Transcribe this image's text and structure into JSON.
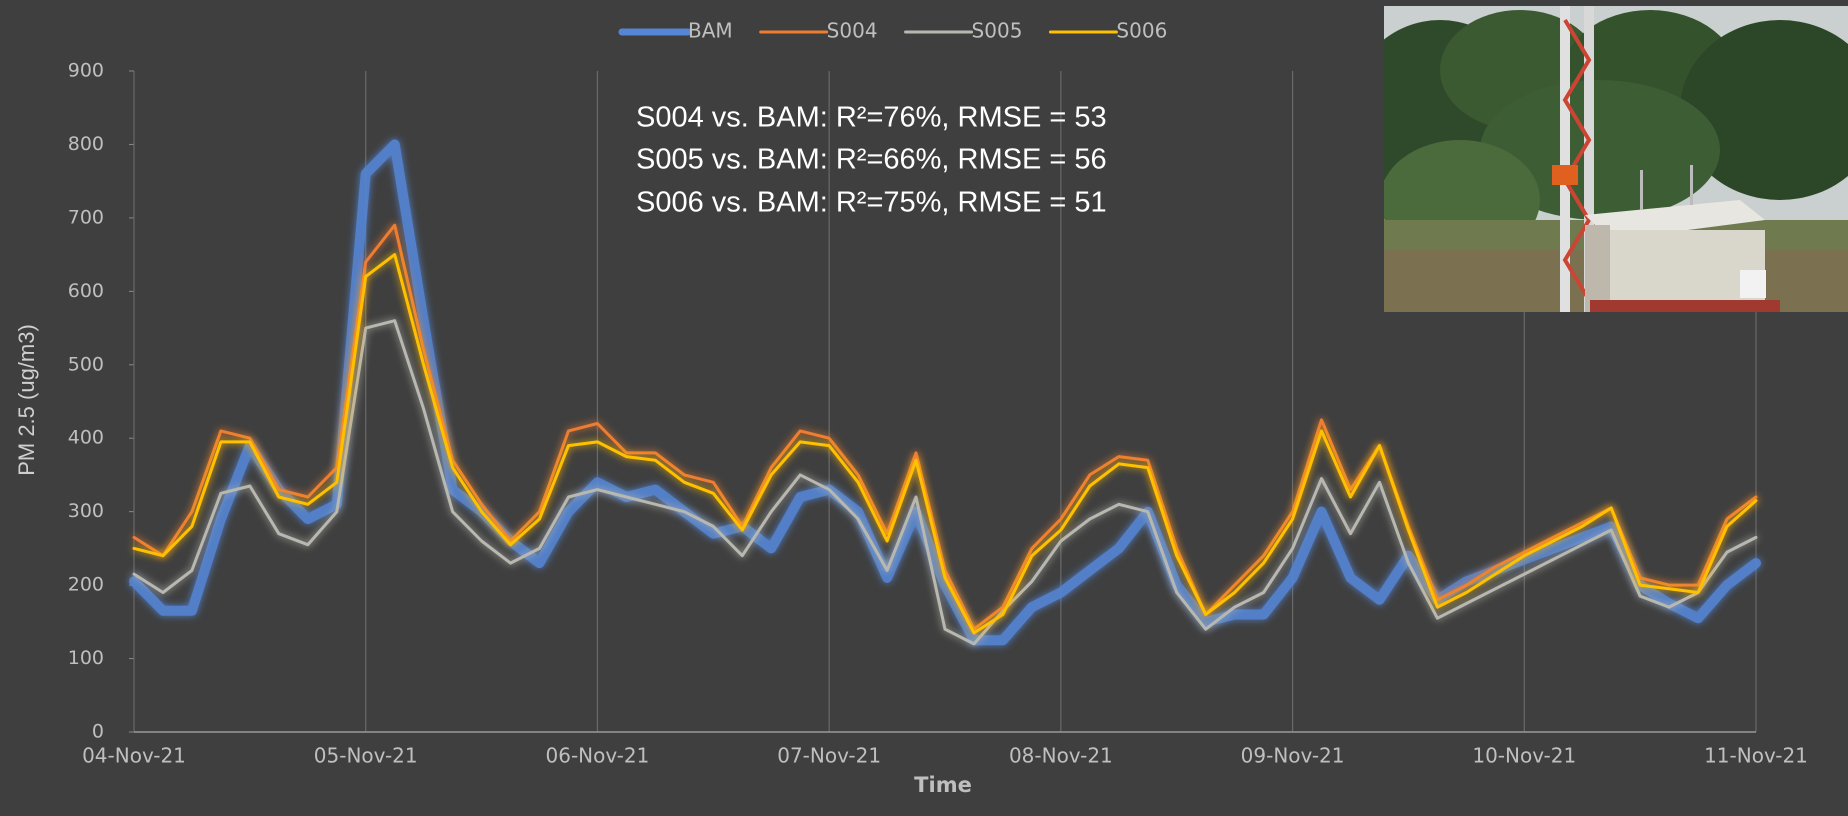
{
  "chart_data": {
    "type": "line",
    "x_label": "Time",
    "y_label": "PM 2.5 (ug/m3)",
    "annotations": [
      "S004 vs. BAM: R²=76%, RMSE = 53",
      "S005 vs. BAM: R²=66%, RMSE = 56",
      "S006 vs. BAM: R²=75%, RMSE = 51"
    ],
    "x": [
      0,
      0.125,
      0.25,
      0.375,
      0.5,
      0.625,
      0.75,
      0.875,
      1,
      1.125,
      1.25,
      1.375,
      1.5,
      1.625,
      1.75,
      1.875,
      2,
      2.125,
      2.25,
      2.375,
      2.5,
      2.625,
      2.75,
      2.875,
      3,
      3.125,
      3.25,
      3.375,
      3.5,
      3.625,
      3.75,
      3.875,
      4,
      4.125,
      4.25,
      4.375,
      4.5,
      4.625,
      4.75,
      4.875,
      5,
      5.125,
      5.25,
      5.375,
      5.5,
      5.625,
      5.75,
      5.875,
      6,
      6.125,
      6.25,
      6.375,
      6.5,
      6.625,
      6.75,
      6.875,
      7
    ],
    "xlim": [
      0,
      7
    ],
    "xticks": [
      {
        "value": 0,
        "label": "04-Nov-21"
      },
      {
        "value": 1,
        "label": "05-Nov-21"
      },
      {
        "value": 2,
        "label": "06-Nov-21"
      },
      {
        "value": 3,
        "label": "07-Nov-21"
      },
      {
        "value": 4,
        "label": "08-Nov-21"
      },
      {
        "value": 5,
        "label": "09-Nov-21"
      },
      {
        "value": 6,
        "label": "10-Nov-21"
      },
      {
        "value": 7,
        "label": "11-Nov-21"
      }
    ],
    "ylim": [
      0,
      900
    ],
    "yticks": [
      0,
      100,
      200,
      300,
      400,
      500,
      600,
      700,
      800,
      900
    ],
    "xgrid": true,
    "legend": "top",
    "series": [
      {
        "name": "BAM",
        "color": "#5586d6",
        "width": 10,
        "values": [
          205,
          165,
          165,
          290,
          390,
          330,
          290,
          310,
          760,
          800,
          560,
          330,
          300,
          260,
          230,
          300,
          340,
          320,
          330,
          300,
          270,
          280,
          250,
          320,
          330,
          300,
          210,
          300,
          200,
          125,
          125,
          170,
          190,
          220,
          250,
          300,
          200,
          150,
          160,
          160,
          210,
          300,
          210,
          180,
          240,
          180,
          205,
          220,
          235,
          250,
          265,
          280,
          200,
          175,
          155,
          200,
          230
        ]
      },
      {
        "name": "S004",
        "color": "#ed7d31",
        "width": 3,
        "values": [
          265,
          240,
          300,
          410,
          400,
          330,
          320,
          360,
          640,
          690,
          520,
          370,
          310,
          260,
          300,
          410,
          420,
          380,
          380,
          350,
          340,
          280,
          360,
          410,
          400,
          350,
          270,
          380,
          220,
          140,
          170,
          250,
          290,
          350,
          375,
          370,
          250,
          160,
          200,
          240,
          300,
          425,
          330,
          390,
          280,
          180,
          200,
          225,
          245,
          265,
          285,
          305,
          210,
          200,
          200,
          290,
          320
        ]
      },
      {
        "name": "S005",
        "color": "#b8b8b0",
        "width": 3,
        "values": [
          215,
          190,
          220,
          325,
          335,
          270,
          255,
          300,
          550,
          560,
          440,
          300,
          260,
          230,
          250,
          320,
          330,
          320,
          310,
          300,
          280,
          240,
          300,
          350,
          330,
          290,
          220,
          320,
          140,
          120,
          165,
          205,
          260,
          290,
          310,
          300,
          190,
          140,
          170,
          190,
          250,
          345,
          270,
          340,
          230,
          155,
          175,
          195,
          215,
          235,
          255,
          275,
          185,
          170,
          190,
          245,
          265
        ]
      },
      {
        "name": "S006",
        "color": "#ffc000",
        "width": 3,
        "values": [
          250,
          240,
          280,
          395,
          395,
          320,
          310,
          340,
          620,
          650,
          500,
          360,
          300,
          255,
          290,
          390,
          395,
          375,
          370,
          340,
          325,
          275,
          350,
          395,
          390,
          340,
          260,
          370,
          210,
          135,
          160,
          240,
          275,
          335,
          365,
          360,
          240,
          160,
          190,
          230,
          290,
          410,
          320,
          390,
          275,
          170,
          190,
          215,
          240,
          260,
          280,
          305,
          200,
          195,
          190,
          280,
          315
        ]
      }
    ],
    "draw_order": [
      0,
      2,
      1,
      3
    ]
  }
}
